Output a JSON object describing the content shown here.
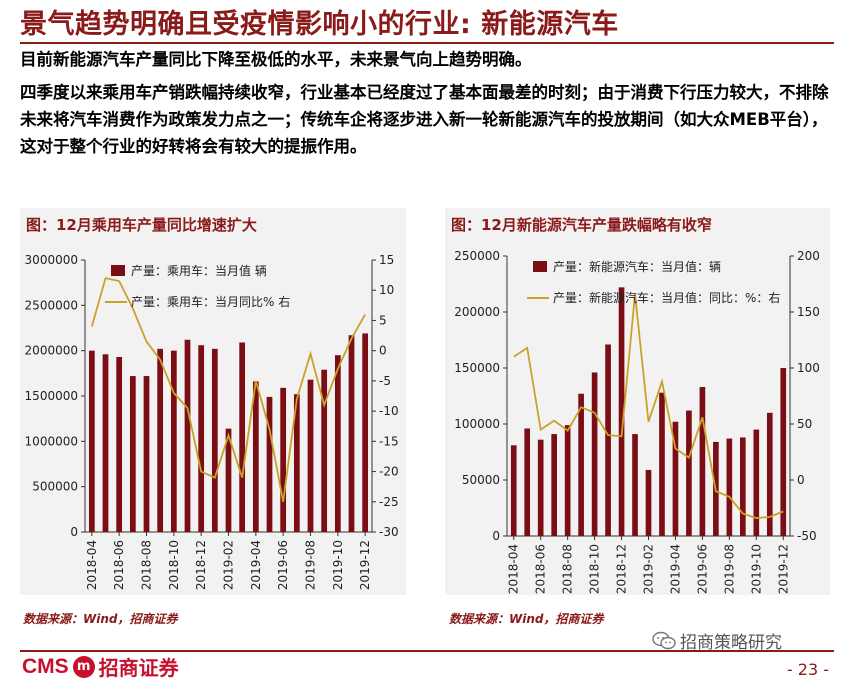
{
  "header": {
    "title": "景气趋势明确且受疫情影响小的行业: 新能源汽车",
    "para1": "目前新能源汽车产量同比下降至极低的水平，未来景气向上趋势明确。",
    "para2": "四季度以来乘用车产销跌幅持续收窄，行业基本已经度过了基本面最差的时刻；由于消费下行压力较大，不排除未来将汽车消费作为政策发力点之一；传统车企将逐步进入新一轮新能源汽车的投放期间（如大众MEB平台），这对于整个行业的好转将会有较大的提振作用。"
  },
  "colors": {
    "accent": "#8b1a1a",
    "bar": "#7b0d14",
    "line": "#c9a227",
    "panel": "#f2f2f2"
  },
  "chart_data": [
    {
      "type": "bar+line",
      "title": "图：12月乘用车产量同比增速扩大",
      "categories": [
        "2018-04",
        "2018-05",
        "2018-06",
        "2018-07",
        "2018-08",
        "2018-09",
        "2018-10",
        "2018-11",
        "2018-12",
        "2019-01",
        "2019-02",
        "2019-03",
        "2019-04",
        "2019-05",
        "2019-06",
        "2019-07",
        "2019-08",
        "2019-09",
        "2019-10",
        "2019-11",
        "2019-12"
      ],
      "xtick_labels": [
        "2018-04",
        "2018-06",
        "2018-08",
        "2018-10",
        "2018-12",
        "2019-02",
        "2019-04",
        "2019-06",
        "2019-08",
        "2019-10",
        "2019-12"
      ],
      "series": [
        {
          "name": "产量：乘用车：当月值 辆",
          "type": "bar",
          "axis": "left",
          "values": [
            2000000,
            1960000,
            1930000,
            1720000,
            1720000,
            2020000,
            2000000,
            2120000,
            2060000,
            2020000,
            1140000,
            2090000,
            1660000,
            1490000,
            1590000,
            1520000,
            1680000,
            1790000,
            1950000,
            2170000,
            2190000
          ]
        },
        {
          "name": "产量：乘用车：当月同比% 右",
          "type": "line",
          "axis": "right",
          "values": [
            4,
            12,
            11.5,
            7,
            1.5,
            -1.5,
            -7,
            -9.5,
            -20,
            -21,
            -14,
            -21,
            -5,
            -13,
            -25,
            -8,
            -0.5,
            -9,
            -3,
            2,
            6
          ]
        }
      ],
      "ylim_left": [
        0,
        3000000
      ],
      "yticks_left": [
        "0",
        "500000",
        "1000000",
        "1500000",
        "2000000",
        "2500000",
        "3000000"
      ],
      "ylim_right": [
        -30,
        15
      ],
      "yticks_right": [
        "-30",
        "-25",
        "-20",
        "-15",
        "-10",
        "-5",
        "0",
        "5",
        "10",
        "15"
      ],
      "legend_position": "top-left",
      "source": "数据来源：Wind，招商证券"
    },
    {
      "type": "bar+line",
      "title": "图：12月新能源汽车产量跌幅略有收窄",
      "categories": [
        "2018-04",
        "2018-05",
        "2018-06",
        "2018-07",
        "2018-08",
        "2018-09",
        "2018-10",
        "2018-11",
        "2018-12",
        "2019-01",
        "2019-02",
        "2019-03",
        "2019-04",
        "2019-05",
        "2019-06",
        "2019-07",
        "2019-08",
        "2019-09",
        "2019-10",
        "2019-11",
        "2019-12"
      ],
      "xtick_labels": [
        "2018-04",
        "2018-06",
        "2018-08",
        "2018-10",
        "2018-12",
        "2019-02",
        "2019-04",
        "2019-06",
        "2019-08",
        "2019-10",
        "2019-12"
      ],
      "series": [
        {
          "name": "产量：新能源汽车：当月值：辆",
          "type": "bar",
          "axis": "left",
          "values": [
            81000,
            96000,
            86000,
            91000,
            99000,
            127000,
            146000,
            171000,
            222000,
            91000,
            59000,
            128000,
            102000,
            112000,
            133000,
            84000,
            87000,
            88000,
            95000,
            110000,
            150000
          ]
        },
        {
          "name": "产量：新能源汽车：当月值：同比：%：右",
          "type": "line",
          "axis": "right",
          "values": [
            110,
            118,
            45,
            53,
            44,
            65,
            60,
            40,
            39,
            166,
            52,
            88,
            28,
            20,
            56,
            -10,
            -15,
            -30,
            -34,
            -33,
            -28
          ]
        }
      ],
      "ylim_left": [
        0,
        250000
      ],
      "yticks_left": [
        "0",
        "50000",
        "100000",
        "150000",
        "200000",
        "250000"
      ],
      "ylim_right": [
        -50,
        200
      ],
      "yticks_right": [
        "-50",
        "0",
        "50",
        "100",
        "150",
        "200"
      ],
      "legend_position": "top-left",
      "source": "数据来源：Wind，招商证券"
    }
  ],
  "footer": {
    "logo_cms": "CMS",
    "logo_emblem": "m",
    "logo_name": "招商证券",
    "wechat": "招商策略研究",
    "page": "- 23 -"
  }
}
